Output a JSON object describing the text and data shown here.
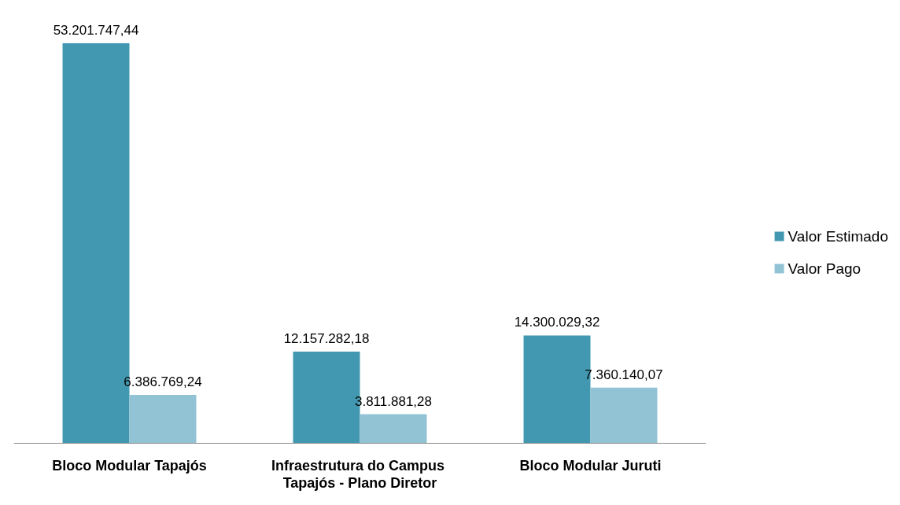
{
  "chart_data": {
    "type": "bar",
    "categories": [
      "Bloco Modular Tapajós",
      "Infraestrutura do Campus Tapajós - Plano Diretor",
      "Bloco Modular Juruti"
    ],
    "series": [
      {
        "name": "Valor Estimado",
        "color": "#4198b0",
        "values": [
          53201747.44,
          12157282.18,
          14300029.32
        ],
        "value_labels": [
          "53.201.747,44",
          "12.157.282,18",
          "14.300.029,32"
        ]
      },
      {
        "name": "Valor Pago",
        "color": "#92c3d4",
        "values": [
          6386769.24,
          3811881.28,
          7360140.07
        ],
        "value_labels": [
          "6.386.769,24",
          "3.811.881,28",
          "7.360.140,07"
        ]
      }
    ],
    "legend": "right"
  }
}
